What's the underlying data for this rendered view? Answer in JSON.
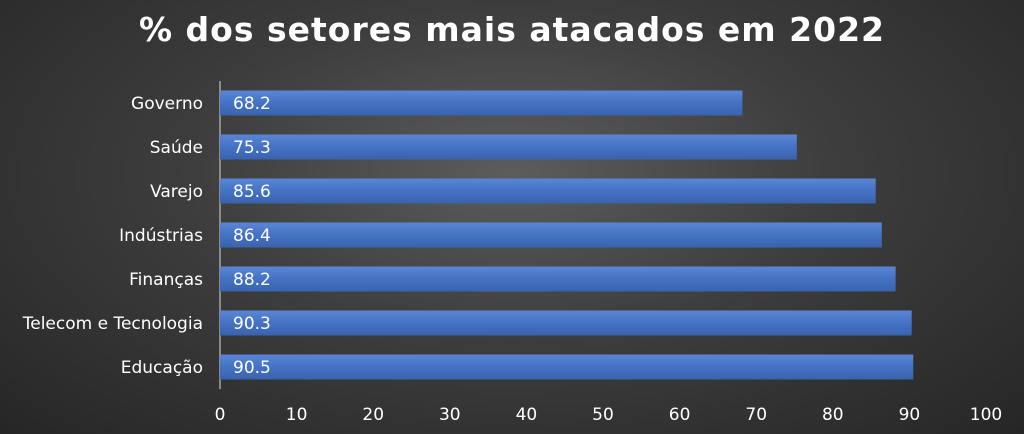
{
  "chart_data": {
    "type": "bar",
    "orientation": "horizontal",
    "title": "% dos setores mais atacados em 2022",
    "categories": [
      "Governo",
      "Saúde",
      "Varejo",
      "Indústrias",
      "Finanças",
      "Telecom e Tecnologia",
      "Educação"
    ],
    "values": [
      68.2,
      75.3,
      85.6,
      86.4,
      88.2,
      90.3,
      90.5
    ],
    "value_labels": [
      "68.2",
      "75.3",
      "85.6",
      "86.4",
      "88.2",
      "90.3",
      "90.5"
    ],
    "xlim": [
      0,
      100
    ],
    "xticks": [
      "0",
      "10",
      "20",
      "30",
      "40",
      "50",
      "60",
      "70",
      "80",
      "90",
      "100"
    ],
    "xlabel": "",
    "ylabel": "",
    "grid": false,
    "legend": "none",
    "bar_color": "#4472c4",
    "background": "#3a3a3a"
  }
}
